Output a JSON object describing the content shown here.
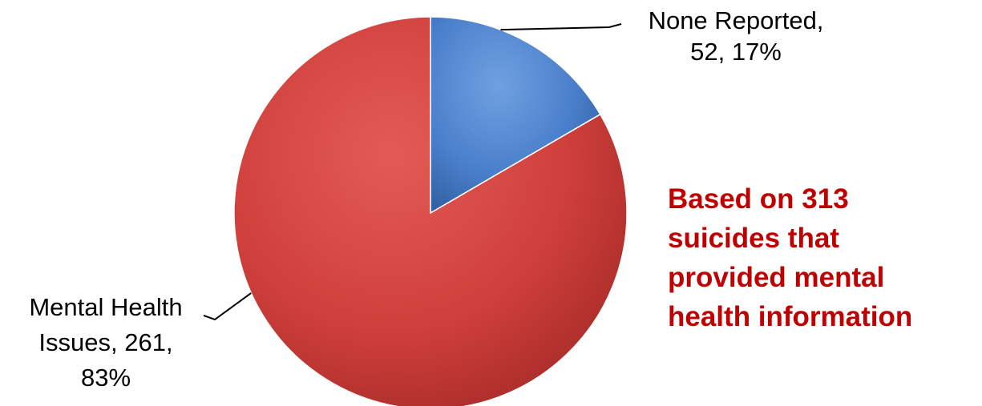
{
  "chart_data": {
    "type": "pie",
    "slices": [
      {
        "label": "None Reported",
        "value": 52,
        "percent": 17,
        "color": "#4a7fcb",
        "label_lines": [
          "None Reported,",
          "52, 17%"
        ]
      },
      {
        "label": "Mental Health Issues",
        "value": 261,
        "percent": 83,
        "color": "#d8403d",
        "label_lines": [
          "Mental Health",
          "Issues, 261,",
          "83%"
        ]
      }
    ],
    "start": "12 o'clock",
    "direction": "clockwise"
  },
  "annotation": {
    "lines": [
      "Based on 313",
      "suicides that",
      "provided mental",
      "health information"
    ],
    "color": "#c00000"
  }
}
